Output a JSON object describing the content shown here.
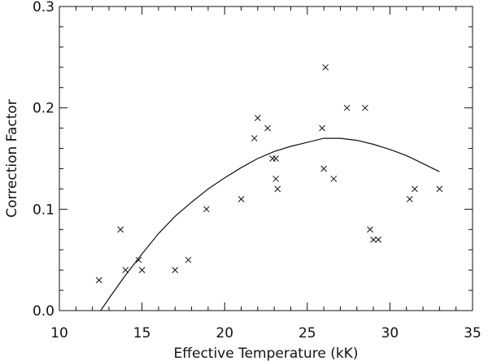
{
  "chart_data": {
    "type": "scatter",
    "title": "",
    "xlabel": "Effective Temperature (kK)",
    "ylabel": "Correction Factor",
    "xlim": [
      10,
      35
    ],
    "ylim": [
      0.0,
      0.3
    ],
    "x_ticks": [
      10,
      15,
      20,
      25,
      30,
      35
    ],
    "x_tick_labels": [
      "10",
      "15",
      "20",
      "25",
      "30",
      "35"
    ],
    "y_ticks": [
      0.0,
      0.1,
      0.2,
      0.3
    ],
    "y_tick_labels": [
      "0.0",
      "0.1",
      "0.2",
      "0.3"
    ],
    "grid": false,
    "series": [
      {
        "marker": "x",
        "x": [
          12.4,
          13.7,
          14.0,
          14.8,
          15.0,
          17.0,
          17.8,
          18.9,
          21.0,
          21.8,
          22.0,
          22.6,
          22.9,
          23.1,
          23.1,
          23.2,
          25.9,
          26.0,
          26.1,
          26.6,
          27.4,
          28.5,
          28.8,
          29.0,
          29.3,
          31.2,
          31.5,
          33.0
        ],
        "y": [
          0.03,
          0.08,
          0.04,
          0.05,
          0.04,
          0.04,
          0.05,
          0.1,
          0.11,
          0.17,
          0.19,
          0.18,
          0.15,
          0.15,
          0.13,
          0.12,
          0.18,
          0.14,
          0.24,
          0.13,
          0.2,
          0.2,
          0.08,
          0.07,
          0.07,
          0.11,
          0.12,
          0.12
        ]
      },
      {
        "marker": "none",
        "line": true,
        "x": [
          12.5,
          13.0,
          14.0,
          15.0,
          16.0,
          17.0,
          18.0,
          19.0,
          20.0,
          21.0,
          22.0,
          23.0,
          24.0,
          25.0,
          26.0,
          27.0,
          28.0,
          29.0,
          30.0,
          31.0,
          32.0,
          33.0
        ],
        "y": [
          0.0,
          0.012,
          0.035,
          0.056,
          0.076,
          0.093,
          0.107,
          0.12,
          0.131,
          0.141,
          0.15,
          0.157,
          0.162,
          0.166,
          0.17,
          0.17,
          0.168,
          0.164,
          0.159,
          0.153,
          0.145,
          0.137
        ]
      }
    ]
  }
}
